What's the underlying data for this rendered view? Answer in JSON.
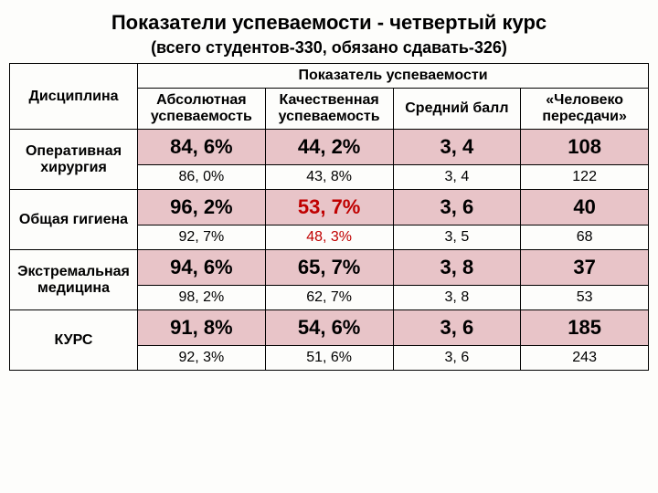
{
  "title": "Показатели успеваемости - четвертый курс",
  "subtitle": "(всего студентов-330, обязано сдавать-326)",
  "headers": {
    "discipline": "Дисциплина",
    "group": "Показатель успеваемости",
    "absolute": "Абсолютная успеваемость",
    "quality": "Качественная успеваемость",
    "avg": "Средний балл",
    "retake": "«Человеко пересдачи»"
  },
  "rows": [
    {
      "label": "Оперативная хирургия",
      "a": [
        "84, 6%",
        "44, 2%",
        "3, 4",
        "108"
      ],
      "b": [
        "86, 0%",
        "43, 8%",
        "3, 4",
        "122"
      ]
    },
    {
      "label": "Общая гигиена",
      "a": [
        "96, 2%",
        "53, 7%",
        "3, 6",
        "40"
      ],
      "b": [
        "92, 7%",
        "48, 3%",
        "3, 5",
        "68"
      ],
      "redA2": true,
      "redB2": true
    },
    {
      "label": "Экстремальная медицина",
      "a": [
        "94, 6%",
        "65, 7%",
        "3, 8",
        "37"
      ],
      "b": [
        "98, 2%",
        "62, 7%",
        "3, 8",
        "53"
      ]
    },
    {
      "label": "КУРС",
      "a": [
        "91, 8%",
        "54, 6%",
        "3, 6",
        "185"
      ],
      "b": [
        "92, 3%",
        "51, 6%",
        "3, 6",
        "243"
      ]
    }
  ],
  "colors": {
    "highlight": "#e8c4c8",
    "red": "#c00000"
  }
}
